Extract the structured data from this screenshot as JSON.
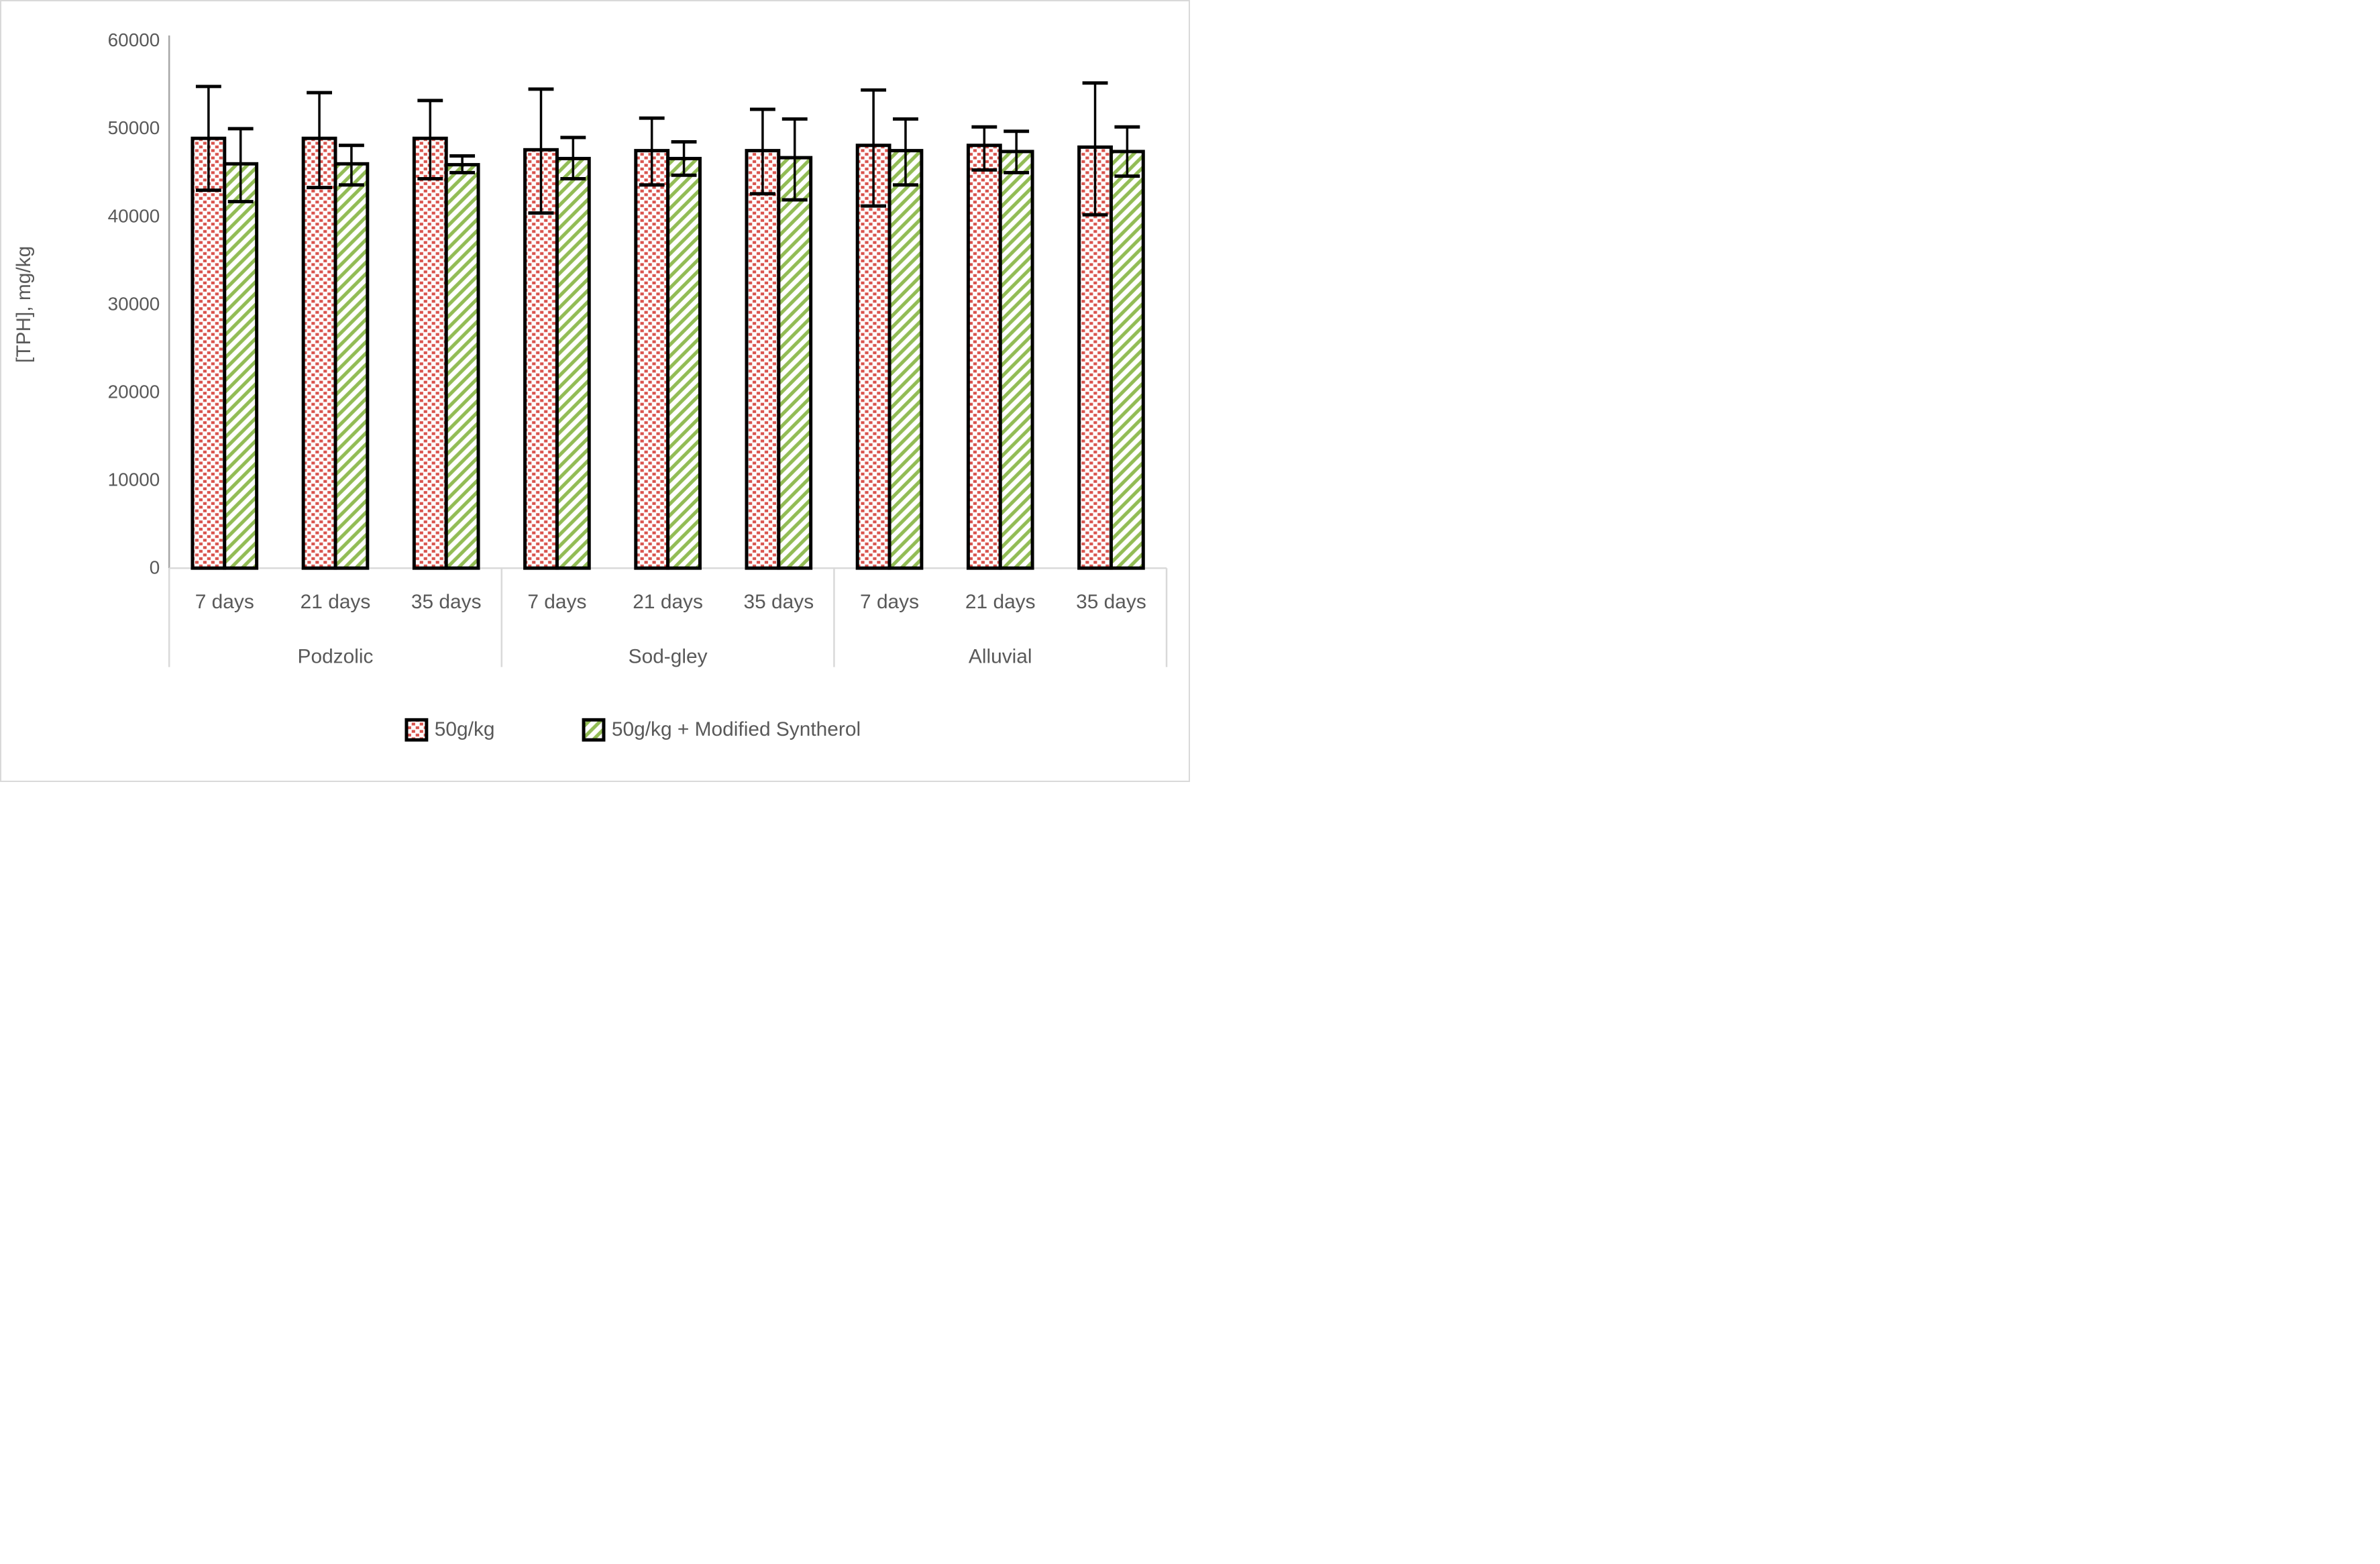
{
  "chart_data": {
    "type": "bar",
    "title": "",
    "ylabel": "[TPH], mg/kg",
    "xlabel": "",
    "ylim": [
      0,
      60000
    ],
    "yticks": [
      0,
      10000,
      20000,
      30000,
      40000,
      50000,
      60000
    ],
    "grid": false,
    "legend_position": "bottom",
    "groups": [
      "Podzolic",
      "Sod-gley",
      "Alluvial"
    ],
    "categories": [
      "7 days",
      "21 days",
      "35 days"
    ],
    "series": [
      {
        "name": "50g/kg",
        "pattern": "red-squares-dotted",
        "color": "#D9534D",
        "values": {
          "Podzolic": [
            48900,
            48900,
            48900
          ],
          "Sod-gley": [
            47600,
            47500,
            47500
          ],
          "Alluvial": [
            48100,
            48100,
            47900
          ]
        },
        "error_top": {
          "Podzolic": [
            54800,
            54100,
            53200
          ],
          "Sod-gley": [
            54500,
            51200,
            52200
          ],
          "Alluvial": [
            54400,
            50200,
            55200
          ]
        },
        "error_bottom": {
          "Podzolic": [
            43000,
            43300,
            44300
          ],
          "Sod-gley": [
            40400,
            43600,
            42600
          ],
          "Alluvial": [
            41200,
            45300,
            40200
          ]
        }
      },
      {
        "name": "50g/kg + Modified Syntherol",
        "pattern": "green-diagonal-stripes",
        "color": "#92BC55",
        "values": {
          "Podzolic": [
            46000,
            46000,
            45900
          ],
          "Sod-gley": [
            46600,
            46600,
            46700
          ],
          "Alluvial": [
            47500,
            47400,
            47400
          ]
        },
        "error_top": {
          "Podzolic": [
            50000,
            48100,
            46900
          ],
          "Sod-gley": [
            49000,
            48500,
            51100
          ],
          "Alluvial": [
            51100,
            49700,
            50200
          ]
        },
        "error_bottom": {
          "Podzolic": [
            41700,
            43600,
            45000
          ],
          "Sod-gley": [
            44300,
            44700,
            41900
          ],
          "Alluvial": [
            43600,
            45000,
            44600
          ]
        }
      }
    ],
    "colors": {
      "axis_line": "#A6A6A6",
      "category_lines": "#D9D9D9",
      "text": "#595959",
      "bar_outline": "#000000",
      "error_bar": "#000000",
      "figure_border": "#D9D9D9",
      "background": "#FFFFFF"
    }
  }
}
